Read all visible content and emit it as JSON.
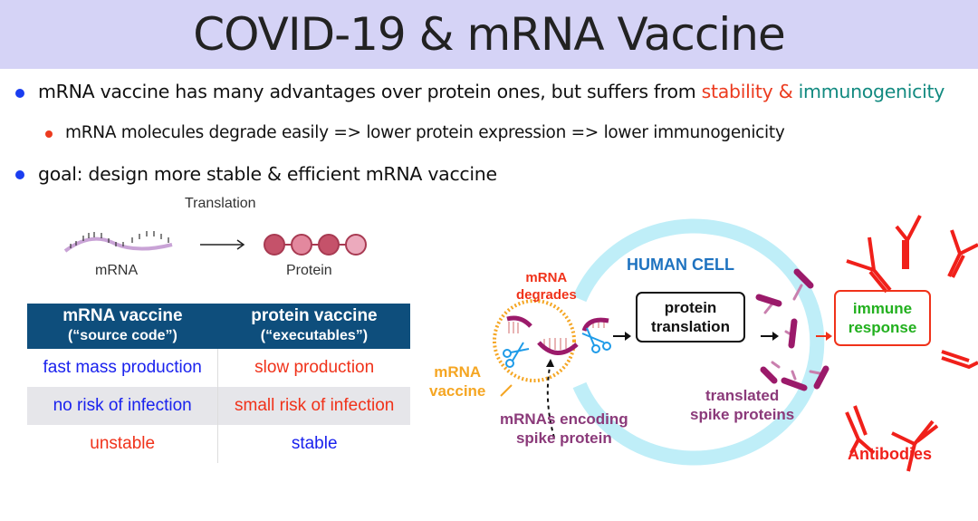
{
  "title": "COVID-19 & mRNA Vaccine",
  "bullets": {
    "b1_text": "mRNA vaccine has many advantages over protein ones, but suffers from ",
    "b1_stability": "stability",
    "b1_amp": " & ",
    "b1_immuno": "immunogenicity",
    "b1_sub": "mRNA molecules degrade easily => lower protein expression => lower immunogenicity",
    "b2_text": "goal: design more stable & efficient mRNA vaccine"
  },
  "translation_figure": {
    "title": "Translation",
    "left_label": "mRNA",
    "right_label": "Protein"
  },
  "table": {
    "headers": [
      {
        "main": "mRNA vaccine",
        "sub": "(“source code”)"
      },
      {
        "main": "protein vaccine",
        "sub": "(“executables”)"
      }
    ],
    "rows": [
      [
        "fast mass production",
        "slow production"
      ],
      [
        "no risk of infection",
        "small risk of infection"
      ],
      [
        "unstable",
        "stable"
      ]
    ]
  },
  "diagram": {
    "human_cell": "HUMAN CELL",
    "mrna_degrades": [
      "mRNA",
      "degrades"
    ],
    "protein_translation": [
      "protein",
      "translation"
    ],
    "immune_response": [
      "immune",
      "response"
    ],
    "mrna_vaccine": [
      "mRNA",
      "vaccine"
    ],
    "mrnas_encoding": [
      "mRNAs encoding",
      "spike protein"
    ],
    "translated_spike": [
      "translated",
      "spike proteins"
    ],
    "antibodies": "Antibodies"
  },
  "colors": {
    "title_bg": "#d5d3f6",
    "table_header": "#0e4e7c",
    "cell": "#bfeef8",
    "antibody": "#f0201a",
    "spike": "#9b1a6a",
    "vaccine": "#f5a623"
  }
}
